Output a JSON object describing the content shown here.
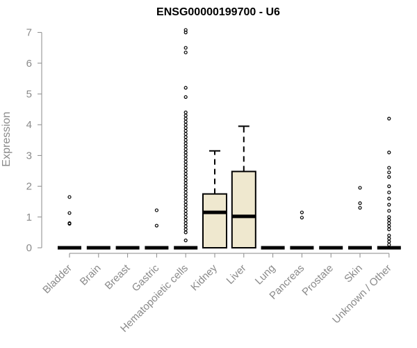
{
  "chart_data": {
    "type": "boxplot",
    "title": "ENSG00000199700 - U6",
    "xlabel": "",
    "ylabel": "Expression",
    "ylim": [
      0,
      7
    ],
    "yticks": [
      0,
      1,
      2,
      3,
      4,
      5,
      6,
      7
    ],
    "grid": false,
    "legend": "none",
    "box_fill": "#efe8cf",
    "categories": [
      "Bladder",
      "Brain",
      "Breast",
      "Gastric",
      "Hematopoietic cells",
      "Kidney",
      "Liver",
      "Lung",
      "Pancreas",
      "Prostate",
      "Skin",
      "Unknown / Other"
    ],
    "boxes": [
      {
        "category": "Bladder",
        "q1": 0,
        "median": 0,
        "q3": 0,
        "whisker_low": 0,
        "whisker_high": 0,
        "outliers": [
          0.78,
          0.8,
          1.13,
          1.65
        ]
      },
      {
        "category": "Brain",
        "q1": 0,
        "median": 0,
        "q3": 0,
        "whisker_low": 0,
        "whisker_high": 0,
        "outliers": []
      },
      {
        "category": "Breast",
        "q1": 0,
        "median": 0,
        "q3": 0,
        "whisker_low": 0,
        "whisker_high": 0,
        "outliers": []
      },
      {
        "category": "Gastric",
        "q1": 0,
        "median": 0,
        "q3": 0,
        "whisker_low": 0,
        "whisker_high": 0,
        "outliers": [
          0.72,
          1.22
        ]
      },
      {
        "category": "Hematopoietic cells",
        "q1": 0,
        "median": 0,
        "q3": 0,
        "whisker_low": 0,
        "whisker_high": 0,
        "outliers": [
          0.24,
          0.5,
          0.6,
          0.7,
          0.8,
          0.9,
          1.0,
          1.1,
          1.2,
          1.3,
          1.4,
          1.5,
          1.6,
          1.7,
          1.8,
          1.9,
          2.0,
          2.1,
          2.2,
          2.3,
          2.4,
          2.5,
          2.6,
          2.7,
          2.8,
          2.9,
          3.0,
          3.1,
          3.2,
          3.3,
          3.4,
          3.5,
          3.6,
          3.7,
          3.8,
          3.9,
          4.0,
          4.1,
          4.2,
          4.3,
          4.4,
          4.9,
          5.2,
          6.35,
          6.5,
          7.0,
          7.08
        ]
      },
      {
        "category": "Kidney",
        "q1": 0,
        "median": 1.15,
        "q3": 1.75,
        "whisker_low": 0,
        "whisker_high": 3.15,
        "outliers": []
      },
      {
        "category": "Liver",
        "q1": 0,
        "median": 1.02,
        "q3": 2.48,
        "whisker_low": 0,
        "whisker_high": 3.95,
        "outliers": []
      },
      {
        "category": "Lung",
        "q1": 0,
        "median": 0,
        "q3": 0,
        "whisker_low": 0,
        "whisker_high": 0,
        "outliers": []
      },
      {
        "category": "Pancreas",
        "q1": 0,
        "median": 0,
        "q3": 0,
        "whisker_low": 0,
        "whisker_high": 0,
        "outliers": [
          0.98,
          1.15
        ]
      },
      {
        "category": "Prostate",
        "q1": 0,
        "median": 0,
        "q3": 0,
        "whisker_low": 0,
        "whisker_high": 0,
        "outliers": []
      },
      {
        "category": "Skin",
        "q1": 0,
        "median": 0,
        "q3": 0,
        "whisker_low": 0,
        "whisker_high": 0,
        "outliers": [
          1.3,
          1.45,
          1.95
        ]
      },
      {
        "category": "Unknown / Other",
        "q1": 0,
        "median": 0,
        "q3": 0,
        "whisker_low": 0,
        "whisker_high": 0,
        "outliers": [
          0.1,
          0.2,
          0.3,
          0.4,
          0.6,
          0.7,
          0.8,
          0.9,
          1.0,
          1.2,
          1.4,
          1.6,
          1.8,
          2.0,
          2.3,
          2.45,
          2.6,
          3.1,
          4.2
        ]
      }
    ]
  }
}
